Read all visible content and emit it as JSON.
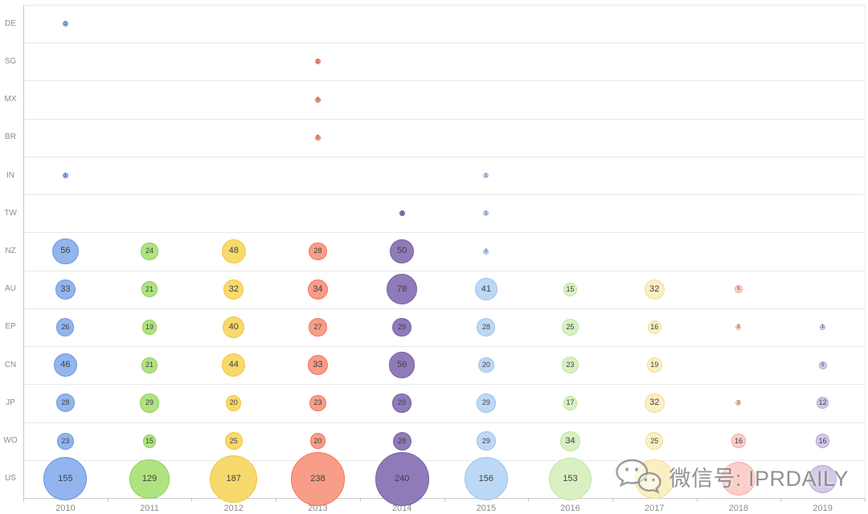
{
  "watermark": {
    "text": "微信号: IPRDAILY",
    "icon": "wechat-logo",
    "color": "#7a7a7a"
  },
  "chart_data": {
    "type": "scatter",
    "subtype": "bubble-matrix",
    "title": "",
    "xlabel": "",
    "ylabel": "",
    "legend": "none",
    "grid": "horizontal-row-separators",
    "axis_label_color": "#8c8c8c",
    "bubble_label_color": "#404040",
    "x_categories": [
      "2010",
      "2011",
      "2012",
      "2013",
      "2014",
      "2015",
      "2016",
      "2017",
      "2018",
      "2019"
    ],
    "y_categories": [
      "DE",
      "SG",
      "MX",
      "BR",
      "IN",
      "TW",
      "NZ",
      "AU",
      "EP",
      "CN",
      "JP",
      "WO",
      "US"
    ],
    "year_colors": {
      "2010": {
        "fill": "#92B5EE",
        "border": "#6E95DF"
      },
      "2011": {
        "fill": "#AFE381",
        "border": "#8FCE54"
      },
      "2012": {
        "fill": "#F8D96D",
        "border": "#EFC83E"
      },
      "2013": {
        "fill": "#F79D88",
        "border": "#F3735A"
      },
      "2014": {
        "fill": "#8F7BBA",
        "border": "#74609C"
      },
      "2015": {
        "fill": "#BDD8F5",
        "border": "#9CC2EE"
      },
      "2016": {
        "fill": "#D9F0C3",
        "border": "#BEE59C"
      },
      "2017": {
        "fill": "#FAEFC3",
        "border": "#F1DF93"
      },
      "2018": {
        "fill": "#F9CFC8",
        "border": "#F3AC9F"
      },
      "2019": {
        "fill": "#D3C8E7",
        "border": "#B5A6D3"
      }
    },
    "rows": [
      {
        "label": "DE",
        "bubbles": [
          {
            "year": "2010",
            "size": 1,
            "label": "1"
          }
        ]
      },
      {
        "label": "SG",
        "bubbles": [
          {
            "year": "2013",
            "size": 1,
            "label": "1"
          }
        ]
      },
      {
        "label": "MX",
        "bubbles": [
          {
            "year": "2013",
            "size": 1,
            "label": "1"
          }
        ]
      },
      {
        "label": "BR",
        "bubbles": [
          {
            "year": "2013",
            "size": 1,
            "label": "1"
          }
        ]
      },
      {
        "label": "IN",
        "bubbles": [
          {
            "year": "2010",
            "size": 1,
            "label": "1"
          },
          {
            "year": "2015",
            "size": 1,
            "label": "1"
          }
        ]
      },
      {
        "label": "TW",
        "bubbles": [
          {
            "year": "2014",
            "size": 1,
            "label": "1"
          },
          {
            "year": "2015",
            "size": 1,
            "label": "1"
          }
        ]
      },
      {
        "label": "NZ",
        "bubbles": [
          {
            "year": "2010",
            "size": 56,
            "label": "56"
          },
          {
            "year": "2011",
            "size": 24,
            "label": "24"
          },
          {
            "year": "2012",
            "size": 48,
            "label": "48"
          },
          {
            "year": "2013",
            "size": 28,
            "label": "28"
          },
          {
            "year": "2014",
            "size": 50,
            "label": "50"
          },
          {
            "year": "2015",
            "size": 2,
            "label": "2"
          }
        ]
      },
      {
        "label": "AU",
        "bubbles": [
          {
            "year": "2010",
            "size": 33,
            "label": "33"
          },
          {
            "year": "2011",
            "size": 21,
            "label": "21"
          },
          {
            "year": "2012",
            "size": 32,
            "label": "32"
          },
          {
            "year": "2013",
            "size": 34,
            "label": "34"
          },
          {
            "year": "2014",
            "size": 78,
            "label": "78"
          },
          {
            "year": "2015",
            "size": 41,
            "label": "41"
          },
          {
            "year": "2016",
            "size": 15,
            "label": "15"
          },
          {
            "year": "2017",
            "size": 32,
            "label": "32"
          },
          {
            "year": "2018",
            "size": 5,
            "label": "5"
          }
        ]
      },
      {
        "label": "EP",
        "bubbles": [
          {
            "year": "2010",
            "size": 26,
            "label": "26"
          },
          {
            "year": "2011",
            "size": 19,
            "label": "19"
          },
          {
            "year": "2012",
            "size": 40,
            "label": "40"
          },
          {
            "year": "2013",
            "size": 27,
            "label": "27"
          },
          {
            "year": "2014",
            "size": 29,
            "label": "29"
          },
          {
            "year": "2015",
            "size": 28,
            "label": "28"
          },
          {
            "year": "2016",
            "size": 25,
            "label": "25"
          },
          {
            "year": "2017",
            "size": 16,
            "label": "16"
          },
          {
            "year": "2018",
            "size": 2,
            "label": "2"
          },
          {
            "year": "2019",
            "size": 1,
            "label": "1"
          }
        ]
      },
      {
        "label": "CN",
        "bubbles": [
          {
            "year": "2010",
            "size": 46,
            "label": "46"
          },
          {
            "year": "2011",
            "size": 21,
            "label": "21"
          },
          {
            "year": "2012",
            "size": 44,
            "label": "44"
          },
          {
            "year": "2013",
            "size": 33,
            "label": "33"
          },
          {
            "year": "2014",
            "size": 56,
            "label": "56"
          },
          {
            "year": "2015",
            "size": 20,
            "label": "20"
          },
          {
            "year": "2016",
            "size": 23,
            "label": "23"
          },
          {
            "year": "2017",
            "size": 19,
            "label": "19"
          },
          {
            "year": "2019",
            "size": 5,
            "label": "5"
          }
        ]
      },
      {
        "label": "JP",
        "bubbles": [
          {
            "year": "2010",
            "size": 28,
            "label": "28"
          },
          {
            "year": "2011",
            "size": 29,
            "label": "29"
          },
          {
            "year": "2012",
            "size": 20,
            "label": "20"
          },
          {
            "year": "2013",
            "size": 23,
            "label": "23"
          },
          {
            "year": "2014",
            "size": 29,
            "label": "29"
          },
          {
            "year": "2015",
            "size": 29,
            "label": "29"
          },
          {
            "year": "2016",
            "size": 17,
            "label": "17"
          },
          {
            "year": "2017",
            "size": 32,
            "label": "32"
          },
          {
            "year": "2018",
            "size": 2,
            "label": "2"
          },
          {
            "year": "2019",
            "size": 12,
            "label": "12"
          }
        ]
      },
      {
        "label": "WO",
        "bubbles": [
          {
            "year": "2010",
            "size": 23,
            "label": "23"
          },
          {
            "year": "2011",
            "size": 15,
            "label": "15"
          },
          {
            "year": "2012",
            "size": 25,
            "label": "25"
          },
          {
            "year": "2013",
            "size": 20,
            "label": "20"
          },
          {
            "year": "2014",
            "size": 28,
            "label": "28"
          },
          {
            "year": "2015",
            "size": 29,
            "label": "29"
          },
          {
            "year": "2016",
            "size": 34,
            "label": "34"
          },
          {
            "year": "2017",
            "size": 25,
            "label": "25"
          },
          {
            "year": "2018",
            "size": 16,
            "label": "16"
          },
          {
            "year": "2019",
            "size": 16,
            "label": "16"
          }
        ]
      },
      {
        "label": "US",
        "bubbles": [
          {
            "year": "2010",
            "size": 155,
            "label": "155"
          },
          {
            "year": "2011",
            "size": 129,
            "label": "129"
          },
          {
            "year": "2012",
            "size": 187,
            "label": "187"
          },
          {
            "year": "2013",
            "size": 238,
            "label": "238"
          },
          {
            "year": "2014",
            "size": 240,
            "label": "240"
          },
          {
            "year": "2015",
            "size": 156,
            "label": "156"
          },
          {
            "year": "2016",
            "size": 153,
            "label": "153"
          },
          {
            "year": "2017",
            "size": 127,
            "label": "",
            "obscured_by_watermark": true
          },
          {
            "year": "2018",
            "size": 94,
            "label": "",
            "obscured_by_watermark": true
          },
          {
            "year": "2019",
            "size": 65,
            "label": "",
            "obscured_by_watermark": true
          }
        ]
      }
    ]
  }
}
